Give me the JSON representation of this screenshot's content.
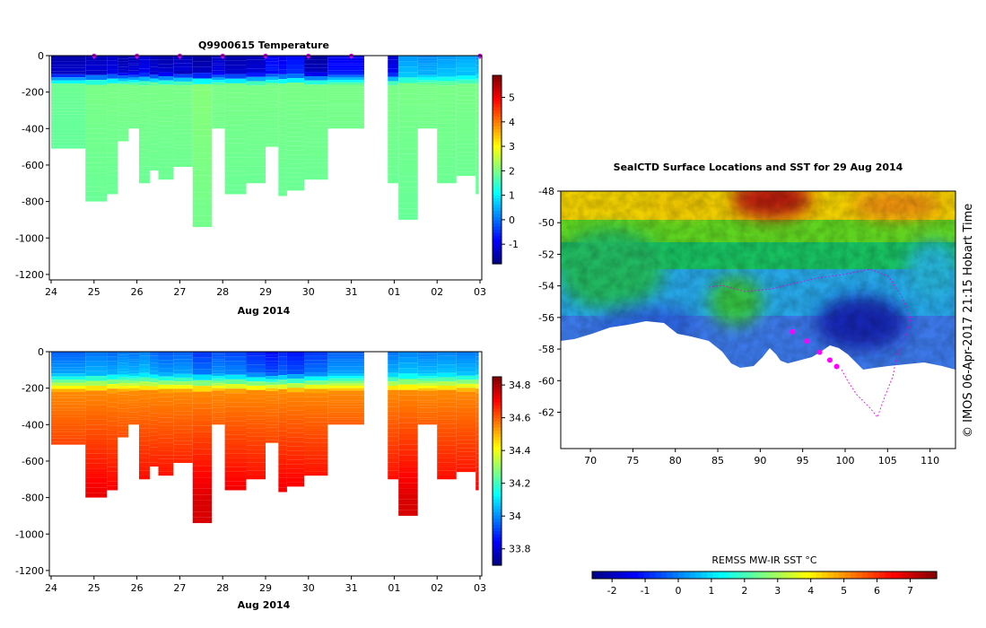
{
  "chart_data": [
    {
      "type": "heatmap",
      "title": "Q9900615  Temperature",
      "xlabel": "Aug 2014",
      "ylabel": "",
      "x_tick_labels": [
        "24",
        "25",
        "26",
        "27",
        "28",
        "29",
        "30",
        "31",
        "01",
        "02",
        "03"
      ],
      "y_tick_labels": [
        "0",
        "-200",
        "-400",
        "-600",
        "-800",
        "-1000",
        "-1200"
      ],
      "ylim": [
        -1230,
        0
      ],
      "colorbar": {
        "ticks": [
          "5",
          "4",
          "3",
          "2",
          "1",
          "0",
          "-1"
        ],
        "range": [
          -1.8,
          5.9
        ]
      },
      "profiles": [
        {
          "start": 0.0,
          "end": 0.8,
          "depth": -510,
          "surface": -1.5,
          "deep": 1.9
        },
        {
          "start": 0.8,
          "end": 1.3,
          "depth": -800,
          "surface": -1.4,
          "deep": 2.0
        },
        {
          "start": 1.3,
          "end": 1.55,
          "depth": -760,
          "surface": -1.3,
          "deep": 2.0
        },
        {
          "start": 1.55,
          "end": 1.8,
          "depth": -470,
          "surface": -1.5,
          "deep": 2.0
        },
        {
          "start": 1.8,
          "end": 2.05,
          "depth": -400,
          "surface": -1.4,
          "deep": 2.0
        },
        {
          "start": 2.05,
          "end": 2.3,
          "depth": -700,
          "surface": -1.2,
          "deep": 2.0
        },
        {
          "start": 2.3,
          "end": 2.5,
          "depth": -630,
          "surface": -1.4,
          "deep": 2.0
        },
        {
          "start": 2.5,
          "end": 2.85,
          "depth": -680,
          "surface": -1.5,
          "deep": 2.0
        },
        {
          "start": 2.85,
          "end": 3.3,
          "depth": -610,
          "surface": -1.4,
          "deep": 2.0
        },
        {
          "start": 3.3,
          "end": 3.75,
          "depth": -940,
          "surface": -1.6,
          "deep": 2.1
        },
        {
          "start": 3.75,
          "end": 4.05,
          "depth": -400,
          "surface": -1.3,
          "deep": 2.0
        },
        {
          "start": 4.05,
          "end": 4.55,
          "depth": -760,
          "surface": -1.5,
          "deep": 2.0
        },
        {
          "start": 4.55,
          "end": 5.0,
          "depth": -700,
          "surface": -1.4,
          "deep": 2.0
        },
        {
          "start": 5.0,
          "end": 5.3,
          "depth": -500,
          "surface": -0.9,
          "deep": 2.0
        },
        {
          "start": 5.3,
          "end": 5.5,
          "depth": -770,
          "surface": -1.0,
          "deep": 2.0
        },
        {
          "start": 5.5,
          "end": 5.9,
          "depth": -740,
          "surface": -0.8,
          "deep": 2.0
        },
        {
          "start": 5.9,
          "end": 6.45,
          "depth": -680,
          "surface": -1.6,
          "deep": 2.0
        },
        {
          "start": 6.45,
          "end": 7.3,
          "depth": -400,
          "surface": -1.0,
          "deep": 2.0
        },
        {
          "start": 7.85,
          "end": 8.1,
          "depth": -700,
          "surface": -1.2,
          "deep": 2.0
        },
        {
          "start": 8.1,
          "end": 8.55,
          "depth": -900,
          "surface": 0.3,
          "deep": 2.0
        },
        {
          "start": 8.55,
          "end": 9.0,
          "depth": -400,
          "surface": 0.2,
          "deep": 2.0
        },
        {
          "start": 9.0,
          "end": 9.45,
          "depth": -700,
          "surface": 0.3,
          "deep": 2.0
        },
        {
          "start": 9.45,
          "end": 9.9,
          "depth": -660,
          "surface": 0.4,
          "deep": 2.0
        },
        {
          "start": 9.9,
          "end": 9.97,
          "depth": -760,
          "surface": 0.3,
          "deep": 2.0
        }
      ],
      "surface_markers": [
        1.0,
        2.0,
        3.0,
        4.0,
        5.0,
        6.0,
        7.0,
        10.0
      ]
    },
    {
      "type": "heatmap",
      "title": "",
      "xlabel": "Aug 2014",
      "ylabel": "",
      "x_tick_labels": [
        "24",
        "25",
        "26",
        "27",
        "28",
        "29",
        "30",
        "31",
        "01",
        "02",
        "03"
      ],
      "y_tick_labels": [
        "0",
        "-200",
        "-400",
        "-600",
        "-800",
        "-1000",
        "-1200"
      ],
      "ylim": [
        -1230,
        0
      ],
      "colorbar": {
        "ticks": [
          "34.8",
          "34.6",
          "34.4",
          "34.2",
          "34",
          "33.8"
        ],
        "range": [
          33.7,
          34.85
        ]
      },
      "profiles": [
        {
          "start": 0.0,
          "end": 0.8,
          "depth": -510,
          "surface": 33.95,
          "deep": 34.72
        },
        {
          "start": 0.8,
          "end": 1.3,
          "depth": -800,
          "surface": 33.97,
          "deep": 34.74
        },
        {
          "start": 1.3,
          "end": 1.55,
          "depth": -760,
          "surface": 33.96,
          "deep": 34.73
        },
        {
          "start": 1.55,
          "end": 1.8,
          "depth": -470,
          "surface": 33.98,
          "deep": 34.72
        },
        {
          "start": 1.8,
          "end": 2.05,
          "depth": -400,
          "surface": 33.97,
          "deep": 34.72
        },
        {
          "start": 2.05,
          "end": 2.3,
          "depth": -700,
          "surface": 33.99,
          "deep": 34.73
        },
        {
          "start": 2.3,
          "end": 2.5,
          "depth": -630,
          "surface": 33.96,
          "deep": 34.73
        },
        {
          "start": 2.5,
          "end": 2.85,
          "depth": -680,
          "surface": 33.94,
          "deep": 34.73
        },
        {
          "start": 2.85,
          "end": 3.3,
          "depth": -610,
          "surface": 33.95,
          "deep": 34.73
        },
        {
          "start": 3.3,
          "end": 3.75,
          "depth": -940,
          "surface": 33.9,
          "deep": 34.75
        },
        {
          "start": 3.75,
          "end": 4.05,
          "depth": -400,
          "surface": 33.93,
          "deep": 34.72
        },
        {
          "start": 4.05,
          "end": 4.55,
          "depth": -760,
          "surface": 33.92,
          "deep": 34.74
        },
        {
          "start": 4.55,
          "end": 5.0,
          "depth": -700,
          "surface": 33.88,
          "deep": 34.73
        },
        {
          "start": 5.0,
          "end": 5.3,
          "depth": -500,
          "surface": 33.85,
          "deep": 34.72
        },
        {
          "start": 5.3,
          "end": 5.5,
          "depth": -770,
          "surface": 33.88,
          "deep": 34.74
        },
        {
          "start": 5.5,
          "end": 5.9,
          "depth": -740,
          "surface": 33.86,
          "deep": 34.74
        },
        {
          "start": 5.9,
          "end": 6.45,
          "depth": -680,
          "surface": 33.9,
          "deep": 34.73
        },
        {
          "start": 6.45,
          "end": 7.3,
          "depth": -400,
          "surface": 33.95,
          "deep": 34.72
        },
        {
          "start": 7.85,
          "end": 8.1,
          "depth": -700,
          "surface": 33.97,
          "deep": 34.73
        },
        {
          "start": 8.1,
          "end": 8.55,
          "depth": -900,
          "surface": 33.99,
          "deep": 34.75
        },
        {
          "start": 8.55,
          "end": 9.0,
          "depth": -400,
          "surface": 33.98,
          "deep": 34.72
        },
        {
          "start": 9.0,
          "end": 9.45,
          "depth": -700,
          "surface": 33.99,
          "deep": 34.73
        },
        {
          "start": 9.45,
          "end": 9.9,
          "depth": -660,
          "surface": 33.98,
          "deep": 34.73
        },
        {
          "start": 9.9,
          "end": 9.97,
          "depth": -760,
          "surface": 33.98,
          "deep": 34.73
        }
      ]
    },
    {
      "type": "heatmap",
      "title": "SealCTD Surface Locations and SST for 29 Aug 2014",
      "xlabel": "",
      "ylabel": "",
      "x_tick_labels": [
        "70",
        "75",
        "80",
        "85",
        "90",
        "95",
        "100",
        "105",
        "110"
      ],
      "y_tick_labels": [
        "-48",
        "-50",
        "-52",
        "-54",
        "-56",
        "-58",
        "-60",
        "-62"
      ],
      "xlim": [
        66.5,
        113.0
      ],
      "ylim": [
        -64.3,
        -48.0
      ],
      "colorbar": {
        "label": "REMSS MW-IR SST °C",
        "ticks": [
          "-2",
          "-1",
          "0",
          "1",
          "2",
          "3",
          "4",
          "5",
          "6",
          "7"
        ],
        "range": [
          -2.6,
          7.8
        ]
      },
      "sealctd_surface_locations": [
        {
          "lon": 93.8,
          "lat": -56.9
        },
        {
          "lon": 95.5,
          "lat": -57.5
        },
        {
          "lon": 97.0,
          "lat": -58.2
        },
        {
          "lon": 98.2,
          "lat": -58.7
        },
        {
          "lon": 99.0,
          "lat": -59.1
        }
      ],
      "side_label": "© IMOS 06-Apr-2017 21:15 Hobart Time"
    }
  ]
}
